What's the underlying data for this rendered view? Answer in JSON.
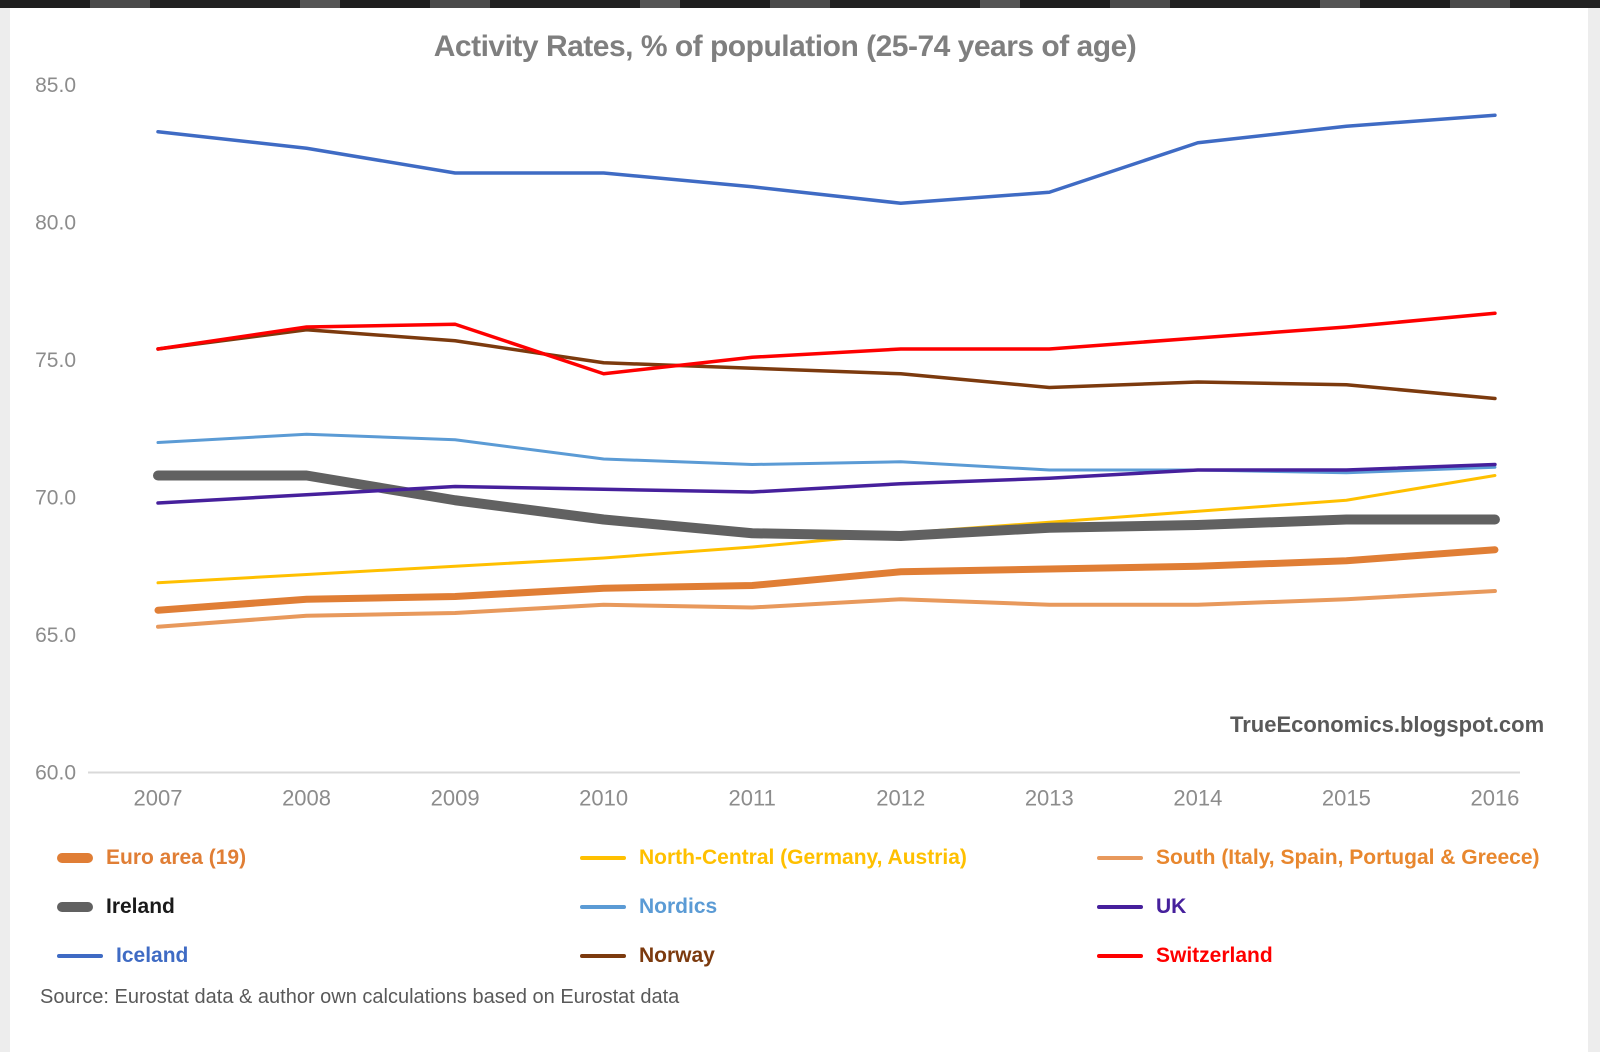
{
  "title": "Activity Rates, % of population (25-74 years of age)",
  "watermark": "TrueEconomics.blogspot.com",
  "source": "Source: Eurostat data & author own calculations based on Eurostat data",
  "chart_data": {
    "type": "line",
    "x": [
      2007,
      2008,
      2009,
      2010,
      2011,
      2012,
      2013,
      2014,
      2015,
      2016
    ],
    "xlabel": "",
    "ylabel": "",
    "ylim": [
      60.0,
      85.0
    ],
    "yticks": [
      60.0,
      65.0,
      70.0,
      75.0,
      80.0,
      85.0
    ],
    "grid": false,
    "legend_position": "bottom",
    "axis_color": "#d9d9d9",
    "tick_label_color": "#8c8c8c",
    "series": [
      {
        "name": "Euro area (19)",
        "color": "#E07E35",
        "label_color": "#E07E35",
        "width": 7,
        "values": [
          65.9,
          66.3,
          66.4,
          66.7,
          66.8,
          67.3,
          67.4,
          67.5,
          67.7,
          68.1
        ]
      },
      {
        "name": "North-Central (Germany, Austria)",
        "color": "#FFC000",
        "label_color": "#FFC000",
        "width": 3,
        "values": [
          66.9,
          67.2,
          67.5,
          67.8,
          68.2,
          68.7,
          69.1,
          69.5,
          69.9,
          70.8
        ]
      },
      {
        "name": "South (Italy, Spain, Portugal & Greece)",
        "color": "#E8995C",
        "label_color": "#E8872E",
        "width": 4,
        "values": [
          65.3,
          65.7,
          65.8,
          66.1,
          66.0,
          66.3,
          66.1,
          66.1,
          66.3,
          66.6
        ]
      },
      {
        "name": "Ireland",
        "color": "#616161",
        "label_color": "#1a1a1a",
        "width": 10,
        "values": [
          70.8,
          70.8,
          69.9,
          69.2,
          68.7,
          68.6,
          68.9,
          69.0,
          69.2,
          69.2
        ]
      },
      {
        "name": "Nordics",
        "color": "#5B9BD5",
        "label_color": "#5B9BD5",
        "width": 3,
        "values": [
          72.0,
          72.3,
          72.1,
          71.4,
          71.2,
          71.3,
          71.0,
          71.0,
          70.9,
          71.1
        ]
      },
      {
        "name": "UK",
        "color": "#46209C",
        "label_color": "#46209C",
        "width": 3.5,
        "values": [
          69.8,
          70.1,
          70.4,
          70.3,
          70.2,
          70.5,
          70.7,
          71.0,
          71.0,
          71.2
        ]
      },
      {
        "name": "Iceland",
        "color": "#3F6BC4",
        "label_color": "#3F6BC4",
        "width": 3.5,
        "values": [
          83.3,
          82.7,
          81.8,
          81.8,
          81.3,
          80.7,
          81.1,
          82.9,
          83.5,
          83.9
        ]
      },
      {
        "name": "Norway",
        "color": "#7C3A0E",
        "label_color": "#7C3A0E",
        "width": 3.5,
        "values": [
          75.4,
          76.1,
          75.7,
          74.9,
          74.7,
          74.5,
          74.0,
          74.2,
          74.1,
          73.6
        ]
      },
      {
        "name": "Switzerland",
        "color": "#FE0000",
        "label_color": "#FE0000",
        "width": 3.5,
        "values": [
          75.4,
          76.2,
          76.3,
          74.5,
          75.1,
          75.4,
          75.4,
          75.8,
          76.2,
          76.7
        ]
      }
    ]
  },
  "layout_note": "legend rows: [Euro area (19), North-Central, South] / [Ireland, Nordics, UK] / [Iceland, Norway, Switzerland]"
}
